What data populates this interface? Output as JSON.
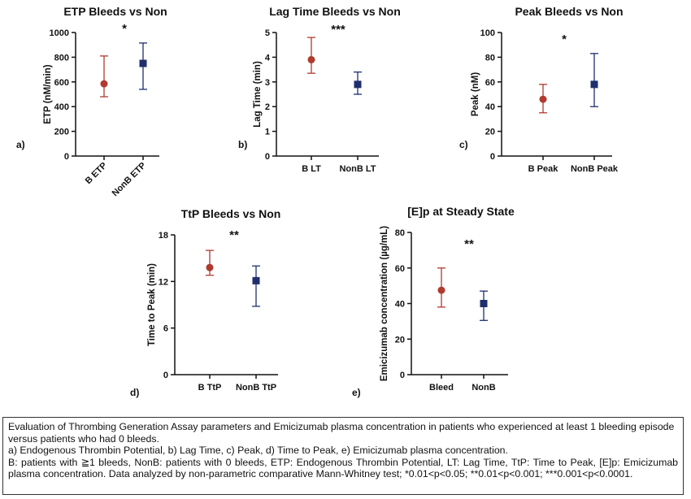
{
  "chart_data": [
    {
      "type": "scatter",
      "panel_label": "a)",
      "title": "ETP Bleeds vs Non",
      "ylabel": "ETP (nM/min)",
      "xlabel": "",
      "categories": [
        "B ETP",
        "NonB ETP"
      ],
      "rotate_ticks": true,
      "ylim": [
        0,
        1000
      ],
      "yticks": [
        "0",
        "200",
        "400",
        "600",
        "800",
        "1000"
      ],
      "significance": "*",
      "points": [
        {
          "category": "B ETP",
          "value": 585,
          "lower": 480,
          "upper": 810,
          "color": "#b03a2e",
          "marker": "circle"
        },
        {
          "category": "NonB ETP",
          "value": 750,
          "lower": 540,
          "upper": 915,
          "color": "#1f2f6e",
          "marker": "square"
        }
      ]
    },
    {
      "type": "scatter",
      "panel_label": "b)",
      "title": "Lag Time Bleeds vs Non",
      "ylabel": "Lag Time (min)",
      "xlabel": "",
      "categories": [
        "B LT",
        "NonB LT"
      ],
      "rotate_ticks": false,
      "ylim": [
        0,
        5
      ],
      "yticks": [
        "0",
        "1",
        "2",
        "3",
        "4",
        "5"
      ],
      "significance": "***",
      "points": [
        {
          "category": "B LT",
          "value": 3.9,
          "lower": 3.35,
          "upper": 4.8,
          "color": "#b03a2e",
          "marker": "circle"
        },
        {
          "category": "NonB LT",
          "value": 2.9,
          "lower": 2.5,
          "upper": 3.4,
          "color": "#1f2f6e",
          "marker": "square"
        }
      ]
    },
    {
      "type": "scatter",
      "panel_label": "c)",
      "title": "Peak Bleeds vs Non",
      "ylabel": "Peak (nM)",
      "xlabel": "",
      "categories": [
        "B Peak",
        "NonB Peak"
      ],
      "rotate_ticks": false,
      "ylim": [
        0,
        100
      ],
      "yticks": [
        "0",
        "20",
        "40",
        "60",
        "80",
        "100"
      ],
      "significance": "*",
      "points": [
        {
          "category": "B Peak",
          "value": 46,
          "lower": 35,
          "upper": 58,
          "color": "#b03a2e",
          "marker": "circle"
        },
        {
          "category": "NonB Peak",
          "value": 58,
          "lower": 40,
          "upper": 83,
          "color": "#1f2f6e",
          "marker": "square"
        }
      ]
    },
    {
      "type": "scatter",
      "panel_label": "d)",
      "title": "TtP Bleeds vs Non",
      "ylabel": "Time to Peak (min)",
      "xlabel": "",
      "categories": [
        "B TtP",
        "NonB TtP"
      ],
      "rotate_ticks": false,
      "ylim": [
        0,
        18
      ],
      "yticks": [
        "0",
        "6",
        "12",
        "18"
      ],
      "significance": "**",
      "points": [
        {
          "category": "B TtP",
          "value": 13.8,
          "lower": 12.8,
          "upper": 16.0,
          "color": "#b03a2e",
          "marker": "circle"
        },
        {
          "category": "NonB TtP",
          "value": 12.1,
          "lower": 8.8,
          "upper": 14.0,
          "color": "#1f2f6e",
          "marker": "square"
        }
      ]
    },
    {
      "type": "scatter",
      "panel_label": "e)",
      "title": "[E]p at Steady State",
      "ylabel": "Emicizumab concentration (µg/mL)",
      "xlabel": "",
      "categories": [
        "Bleed",
        "NonB"
      ],
      "rotate_ticks": false,
      "ylim": [
        0,
        80
      ],
      "yticks": [
        "0",
        "20",
        "40",
        "60",
        "80"
      ],
      "significance": "**",
      "points": [
        {
          "category": "Bleed",
          "value": 47.5,
          "lower": 38,
          "upper": 60,
          "color": "#b03a2e",
          "marker": "circle"
        },
        {
          "category": "NonB",
          "value": 40,
          "lower": 30.5,
          "upper": 47,
          "color": "#1f2f6e",
          "marker": "square"
        }
      ]
    }
  ],
  "caption": {
    "line1": "Evaluation of Thrombing Generation Assay parameters and Emicizumab plasma concentration in patients who experienced at least 1 bleeding episode versus patients who had 0 bleeds.",
    "line2": "a) Endogenous Thrombin Potential, b) Lag Time, c) Peak, d) Time to Peak, e) Emicizumab plasma concentration.",
    "line3": "B: patients with ≧1 bleeds, NonB: patients with 0 bleeds, ETP: Endogenous Thrombin Potential, LT: Lag  Time, TtP: Time to  Peak, [E]p: Emicizumab plasma concentration. Data analyzed by non-parametric comparative Mann-Whitney test; *0.01<p<0.05; **0.01<p<0.001; ***0.001<p<0.0001."
  }
}
